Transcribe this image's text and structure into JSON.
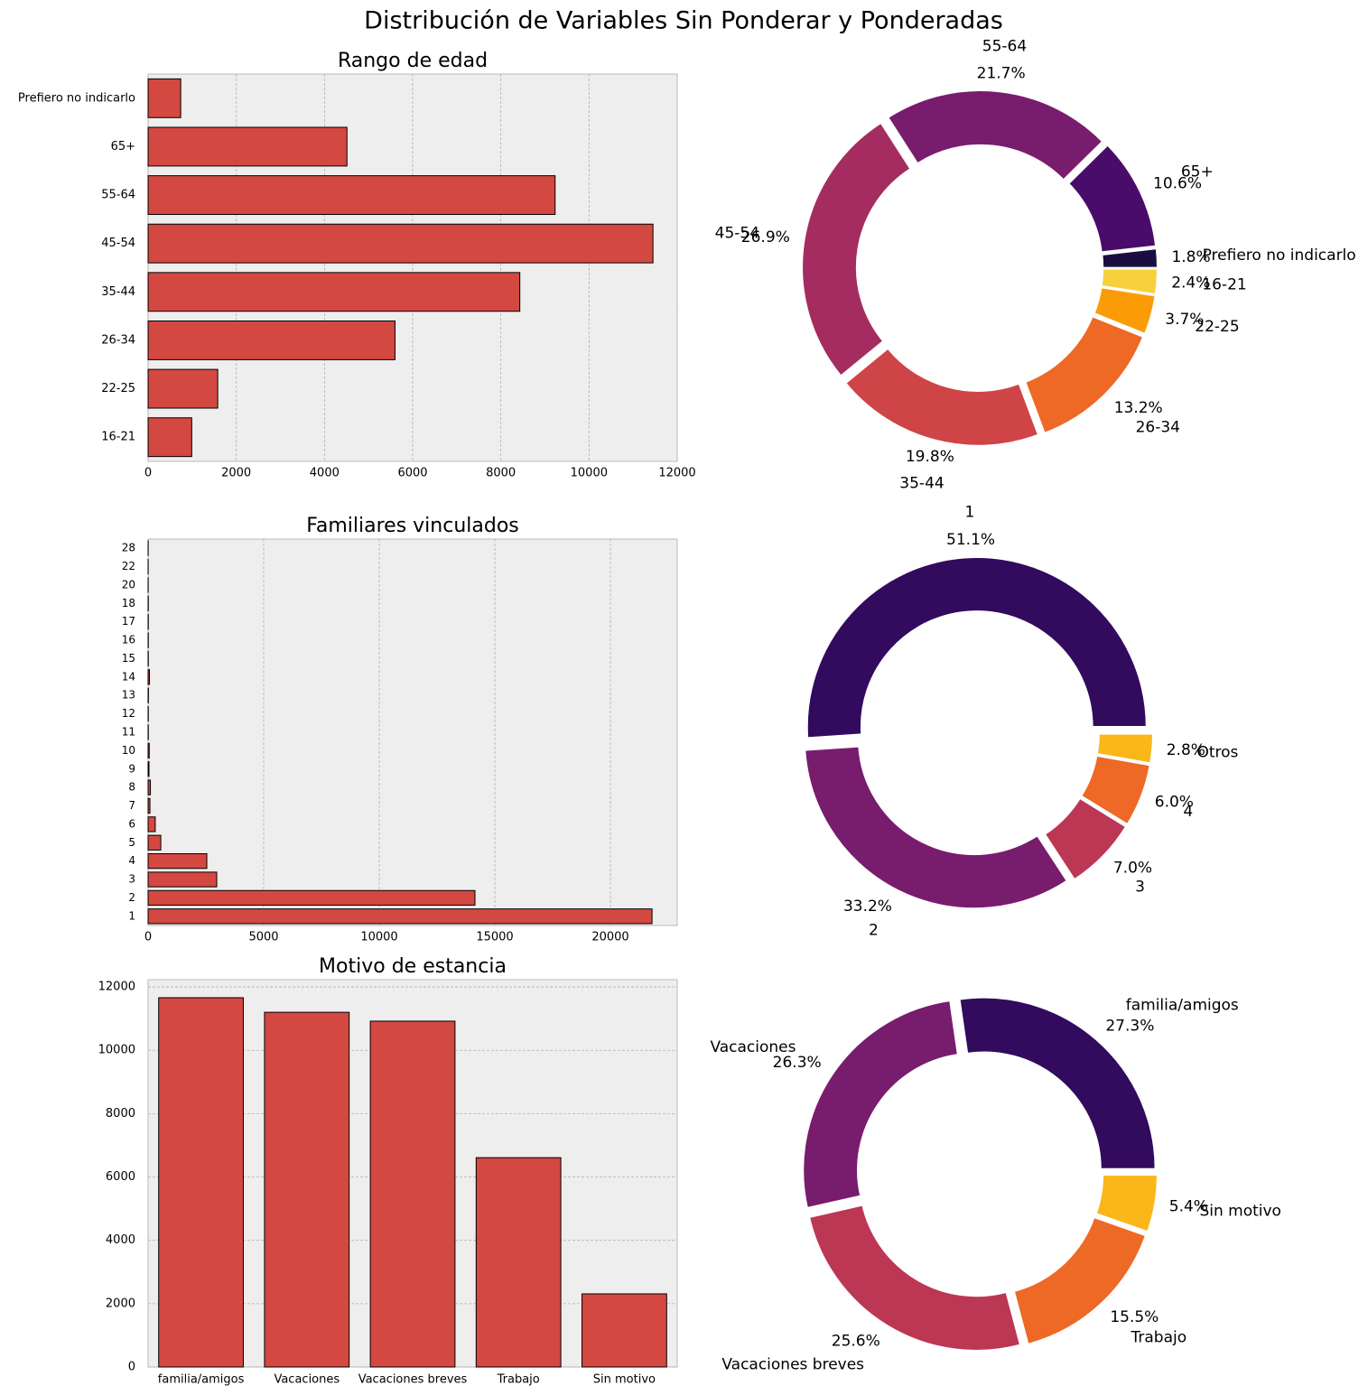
{
  "title": "Distribución de Variables Sin Ponderar y Ponderadas",
  "chart_data": [
    {
      "type": "barh",
      "title": "Rango de edad",
      "categories": [
        "16-21",
        "22-25",
        "26-34",
        "35-44",
        "45-54",
        "55-64",
        "65+",
        "Prefiero no indicarlo"
      ],
      "values": [
        990,
        1580,
        5600,
        8430,
        11450,
        9230,
        4510,
        740
      ],
      "color": "#d44842",
      "edgecolor": "#000000",
      "xlim": [
        0,
        12000
      ],
      "xticks": [
        0,
        2000,
        4000,
        6000,
        8000,
        10000,
        12000
      ],
      "grid": true
    },
    {
      "type": "pie",
      "categories": [
        "Prefiero no indicarlo",
        "65+",
        "55-64",
        "45-54",
        "35-44",
        "26-34",
        "22-25",
        "16-21"
      ],
      "values": [
        1.8,
        10.6,
        21.7,
        26.9,
        19.8,
        13.2,
        3.7,
        2.4
      ],
      "value_labels": [
        "1.8%",
        "10.6%",
        "21.7%",
        "26.9%",
        "19.8%",
        "13.2%",
        "3.7%",
        "2.4%"
      ],
      "colors": [
        "#1b0c41",
        "#4a0c6b",
        "#781c6d",
        "#a52c60",
        "#cf4446",
        "#ed6925",
        "#fb9b06",
        "#f7d13d"
      ]
    },
    {
      "type": "barh",
      "title": "Familiares vinculados",
      "categories": [
        "1",
        "2",
        "3",
        "4",
        "5",
        "6",
        "7",
        "8",
        "9",
        "10",
        "11",
        "12",
        "13",
        "14",
        "15",
        "16",
        "17",
        "18",
        "20",
        "22",
        "28"
      ],
      "values": [
        21800,
        14140,
        2970,
        2540,
        550,
        310,
        80,
        100,
        40,
        50,
        10,
        10,
        15,
        60,
        10,
        10,
        10,
        10,
        5,
        5,
        5
      ],
      "color": "#d44842",
      "edgecolor": "#000000",
      "xlim": [
        0,
        22890
      ],
      "xticks": [
        0,
        5000,
        10000,
        15000,
        20000
      ],
      "grid": true
    },
    {
      "type": "pie",
      "categories": [
        "1",
        "2",
        "3",
        "4",
        "Otros"
      ],
      "values": [
        51.1,
        33.2,
        7.0,
        6.0,
        2.8
      ],
      "value_labels": [
        "51.1%",
        "33.2%",
        "7.0%",
        "6.0%",
        "2.8%"
      ],
      "colors": [
        "#320a5e",
        "#781c6d",
        "#bc3754",
        "#ed6925",
        "#fbb61a"
      ]
    },
    {
      "type": "bar",
      "title": "Motivo de estancia",
      "categories": [
        "familia/amigos",
        "Vacaciones",
        "Vacaciones breves",
        "Trabajo",
        "Sin motivo"
      ],
      "values": [
        11660,
        11200,
        10920,
        6610,
        2310
      ],
      "color": "#d44842",
      "edgecolor": "#000000",
      "ylim": [
        0,
        12230
      ],
      "yticks": [
        0,
        2000,
        4000,
        6000,
        8000,
        10000,
        12000
      ],
      "grid": true
    },
    {
      "type": "pie",
      "categories": [
        "familia/amigos",
        "Vacaciones",
        "Vacaciones breves",
        "Trabajo",
        "Sin motivo"
      ],
      "values": [
        27.3,
        26.3,
        25.6,
        15.5,
        5.4
      ],
      "value_labels": [
        "27.3%",
        "26.3%",
        "25.6%",
        "15.5%",
        "5.4%"
      ],
      "colors": [
        "#320a5e",
        "#781c6d",
        "#bc3754",
        "#ed6925",
        "#fbb61a"
      ]
    }
  ]
}
